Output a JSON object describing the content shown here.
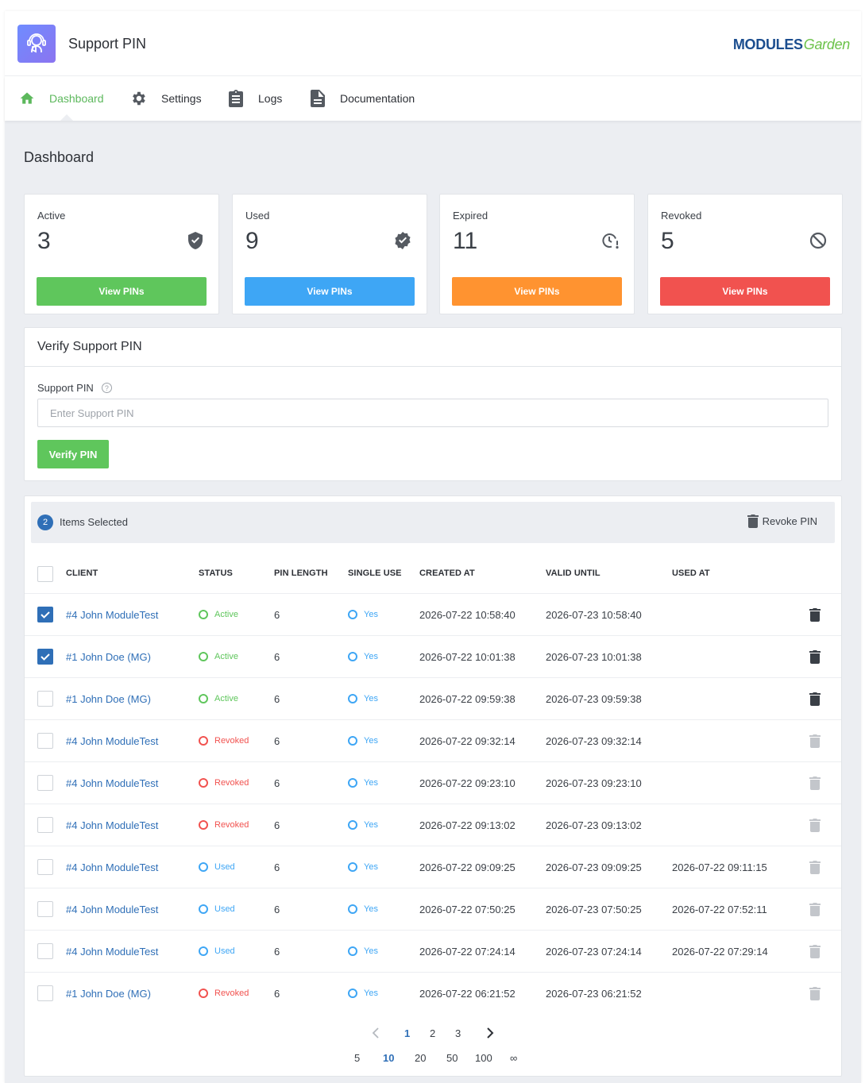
{
  "app": {
    "title": "Support PIN",
    "brand_main": "MODULES",
    "brand_accent": "Garden"
  },
  "nav": {
    "dashboard": "Dashboard",
    "settings": "Settings",
    "logs": "Logs",
    "documentation": "Documentation"
  },
  "page": {
    "title": "Dashboard"
  },
  "stats": [
    {
      "label": "Active",
      "value": "3",
      "button": "View PINs",
      "color": "#5fc65c",
      "icon": "shield-icon"
    },
    {
      "label": "Used",
      "value": "9",
      "button": "View PINs",
      "color": "#3ea6f5",
      "icon": "verified-badge-icon"
    },
    {
      "label": "Expired",
      "value": "11",
      "button": "View PINs",
      "color": "#ff9330",
      "icon": "clock-alert-icon"
    },
    {
      "label": "Revoked",
      "value": "5",
      "button": "View PINs",
      "color": "#f1524f",
      "icon": "block-icon"
    }
  ],
  "verify": {
    "title": "Verify Support PIN",
    "field_label": "Support PIN",
    "help": "?",
    "placeholder": "Enter Support PIN",
    "button": "Verify PIN"
  },
  "selection": {
    "count": "2",
    "text": "Items Selected",
    "revoke": "Revoke PIN"
  },
  "table": {
    "headers": {
      "client": "CLIENT",
      "status": "STATUS",
      "pin_length": "PIN LENGTH",
      "single_use": "SINGLE USE",
      "created_at": "CREATED AT",
      "valid_until": "VALID UNTIL",
      "used_at": "USED AT"
    },
    "rows": [
      {
        "checked": true,
        "client": "#4 John ModuleTest",
        "status": "Active",
        "pin_length": "6",
        "single_use": "Yes",
        "created_at": "2026-07-22 10:58:40",
        "valid_until": "2026-07-23 10:58:40",
        "used_at": "",
        "trash_enabled": true
      },
      {
        "checked": true,
        "client": "#1 John Doe (MG)",
        "status": "Active",
        "pin_length": "6",
        "single_use": "Yes",
        "created_at": "2026-07-22 10:01:38",
        "valid_until": "2026-07-23 10:01:38",
        "used_at": "",
        "trash_enabled": true
      },
      {
        "checked": false,
        "client": "#1 John Doe (MG)",
        "status": "Active",
        "pin_length": "6",
        "single_use": "Yes",
        "created_at": "2026-07-22 09:59:38",
        "valid_until": "2026-07-23 09:59:38",
        "used_at": "",
        "trash_enabled": true
      },
      {
        "checked": false,
        "client": "#4 John ModuleTest",
        "status": "Revoked",
        "pin_length": "6",
        "single_use": "Yes",
        "created_at": "2026-07-22 09:32:14",
        "valid_until": "2026-07-23 09:32:14",
        "used_at": "",
        "trash_enabled": false
      },
      {
        "checked": false,
        "client": "#4 John ModuleTest",
        "status": "Revoked",
        "pin_length": "6",
        "single_use": "Yes",
        "created_at": "2026-07-22 09:23:10",
        "valid_until": "2026-07-23 09:23:10",
        "used_at": "",
        "trash_enabled": false
      },
      {
        "checked": false,
        "client": "#4 John ModuleTest",
        "status": "Revoked",
        "pin_length": "6",
        "single_use": "Yes",
        "created_at": "2026-07-22 09:13:02",
        "valid_until": "2026-07-23 09:13:02",
        "used_at": "",
        "trash_enabled": false
      },
      {
        "checked": false,
        "client": "#4 John ModuleTest",
        "status": "Used",
        "pin_length": "6",
        "single_use": "Yes",
        "created_at": "2026-07-22 09:09:25",
        "valid_until": "2026-07-23 09:09:25",
        "used_at": "2026-07-22 09:11:15",
        "trash_enabled": false
      },
      {
        "checked": false,
        "client": "#4 John ModuleTest",
        "status": "Used",
        "pin_length": "6",
        "single_use": "Yes",
        "created_at": "2026-07-22 07:50:25",
        "valid_until": "2026-07-23 07:50:25",
        "used_at": "2026-07-22 07:52:11",
        "trash_enabled": false
      },
      {
        "checked": false,
        "client": "#4 John ModuleTest",
        "status": "Used",
        "pin_length": "6",
        "single_use": "Yes",
        "created_at": "2026-07-22 07:24:14",
        "valid_until": "2026-07-23 07:24:14",
        "used_at": "2026-07-22 07:29:14",
        "trash_enabled": false
      },
      {
        "checked": false,
        "client": "#1 John Doe (MG)",
        "status": "Revoked",
        "pin_length": "6",
        "single_use": "Yes",
        "created_at": "2026-07-22 06:21:52",
        "valid_until": "2026-07-23 06:21:52",
        "used_at": "",
        "trash_enabled": false
      }
    ]
  },
  "status_colors": {
    "Active": "#5fc65c",
    "Revoked": "#f1524f",
    "Used": "#3ea6f5",
    "Yes": "#3ea6f5"
  },
  "pagination": {
    "pages": [
      "1",
      "2",
      "3"
    ],
    "current_page": "1",
    "page_sizes": [
      "5",
      "10",
      "20",
      "50",
      "100",
      "∞"
    ],
    "current_size": "10"
  }
}
